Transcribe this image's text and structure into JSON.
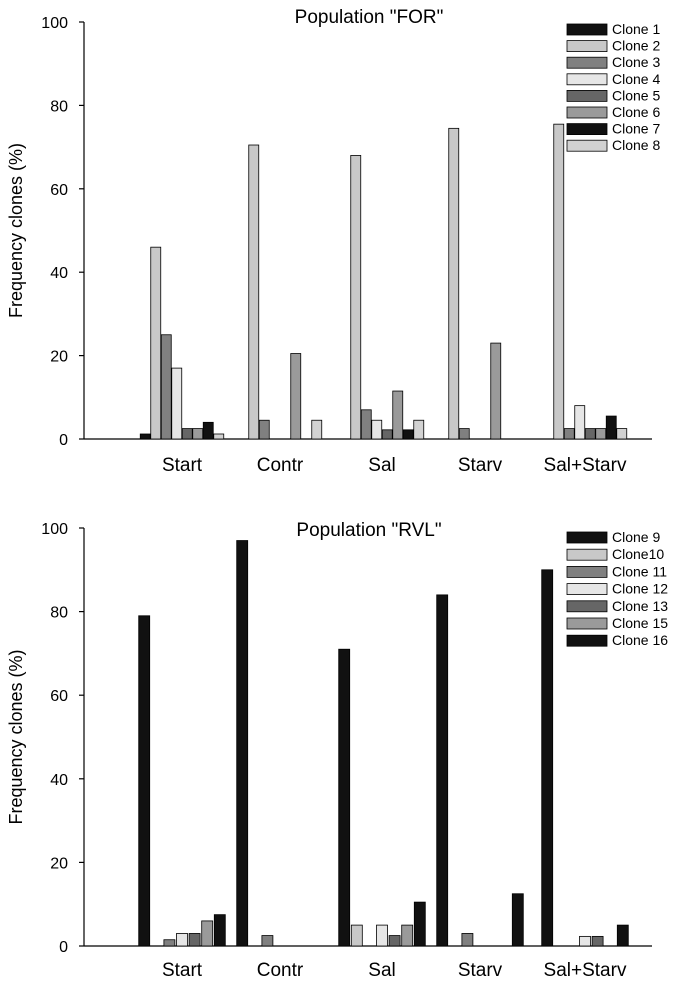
{
  "chart_data": [
    {
      "type": "bar",
      "title": "Population \"FOR\"",
      "xlabel": "",
      "ylabel": "Frequency clones (%)",
      "ylim": [
        0,
        100
      ],
      "yticks": [
        "0",
        "20",
        "40",
        "60",
        "80",
        "100"
      ],
      "grid": false,
      "legend_position": "top-right",
      "categories": [
        "Start",
        "Contr",
        "Sal",
        "Starv",
        "Sal+Starv"
      ],
      "series": [
        {
          "name": "Clone 1",
          "color": "#111111",
          "values": [
            1.2,
            0,
            0,
            0,
            0
          ]
        },
        {
          "name": "Clone 2",
          "color": "#c8c8c8",
          "values": [
            46,
            70.5,
            68,
            74.5,
            75.5
          ]
        },
        {
          "name": "Clone 3",
          "color": "#808080",
          "values": [
            25,
            4.5,
            7,
            2.5,
            2.5
          ]
        },
        {
          "name": "Clone 4",
          "color": "#e6e6e6",
          "values": [
            17,
            0,
            4.5,
            0,
            8
          ]
        },
        {
          "name": "Clone 5",
          "color": "#666666",
          "values": [
            2.5,
            0,
            2.2,
            0,
            2.5
          ]
        },
        {
          "name": "Clone 6",
          "color": "#9a9a9a",
          "values": [
            2.5,
            20.5,
            11.5,
            23,
            2.5
          ]
        },
        {
          "name": "Clone 7",
          "color": "#111111",
          "values": [
            4,
            0,
            2.2,
            0,
            5.5
          ]
        },
        {
          "name": "Clone 8",
          "color": "#d2d2d2",
          "values": [
            1.2,
            4.5,
            4.5,
            0,
            2.5
          ]
        }
      ]
    },
    {
      "type": "bar",
      "title": "Population \"RVL\"",
      "xlabel": "",
      "ylabel": "Frequency clones (%)",
      "ylim": [
        0,
        100
      ],
      "yticks": [
        "0",
        "20",
        "40",
        "60",
        "80",
        "100"
      ],
      "grid": false,
      "legend_position": "top-right",
      "categories": [
        "Start",
        "Contr",
        "Sal",
        "Starv",
        "Sal+Starv"
      ],
      "series": [
        {
          "name": "Clone 9",
          "color": "#111111",
          "values": [
            79,
            97,
            71,
            84,
            90
          ]
        },
        {
          "name": "Clone10",
          "color": "#c8c8c8",
          "values": [
            0,
            0,
            5,
            0,
            0
          ]
        },
        {
          "name": "Clone 11",
          "color": "#808080",
          "values": [
            1.5,
            2.5,
            0,
            3,
            0
          ]
        },
        {
          "name": "Clone 12",
          "color": "#e6e6e6",
          "values": [
            3,
            0,
            5,
            0,
            2.3
          ]
        },
        {
          "name": "Clone 13",
          "color": "#666666",
          "values": [
            3,
            0,
            2.5,
            0,
            2.3
          ]
        },
        {
          "name": "Clone 15",
          "color": "#9a9a9a",
          "values": [
            6,
            0,
            5,
            0,
            0
          ]
        },
        {
          "name": "Clone 16",
          "color": "#111111",
          "values": [
            7.5,
            0,
            10.5,
            12.5,
            5
          ]
        }
      ]
    }
  ]
}
